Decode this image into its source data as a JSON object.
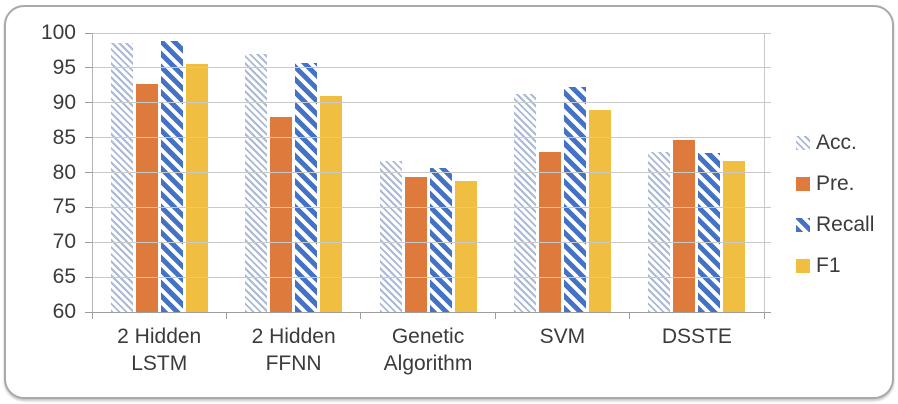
{
  "figure": {
    "background_color": "#ffffff",
    "border_color": "#a9a9a9"
  },
  "chart_data": {
    "type": "bar",
    "title": "",
    "xlabel": "",
    "ylabel": "",
    "ylim": [
      60,
      100
    ],
    "yticks": [
      100,
      95,
      90,
      85,
      80,
      75,
      70,
      65,
      60
    ],
    "grid": true,
    "legend_position": "right",
    "categories": [
      "2 Hidden LSTM",
      "2 Hidden FFNN",
      "Genetic Algorithm",
      "SVM",
      "DSSTE"
    ],
    "category_label_lines": [
      [
        "2 Hidden",
        "LSTM"
      ],
      [
        "2 Hidden",
        "FFNN"
      ],
      [
        "Genetic",
        "Algorithm"
      ],
      [
        "SVM"
      ],
      [
        "DSSTE"
      ]
    ],
    "series": [
      {
        "name": "Acc.",
        "pattern": "thin-diagonal",
        "color": "#aab9d5",
        "values": [
          98.5,
          97.0,
          81.7,
          91.3,
          83.0
        ]
      },
      {
        "name": "Pre.",
        "pattern": "solid",
        "color": "#dd7a3c",
        "values": [
          92.7,
          88.0,
          79.4,
          83.0,
          84.6
        ]
      },
      {
        "name": "Recall",
        "pattern": "wide-diagonal",
        "color": "#4472c4",
        "values": [
          98.9,
          95.7,
          80.7,
          92.2,
          82.8
        ]
      },
      {
        "name": "F1",
        "pattern": "solid",
        "color": "#f0bf41",
        "values": [
          95.6,
          91.0,
          78.8,
          89.0,
          81.6
        ]
      }
    ],
    "colors": {
      "gridline": "#c9c9c9",
      "axis": "#9d9d9d",
      "text": "#3b3b3b"
    }
  }
}
